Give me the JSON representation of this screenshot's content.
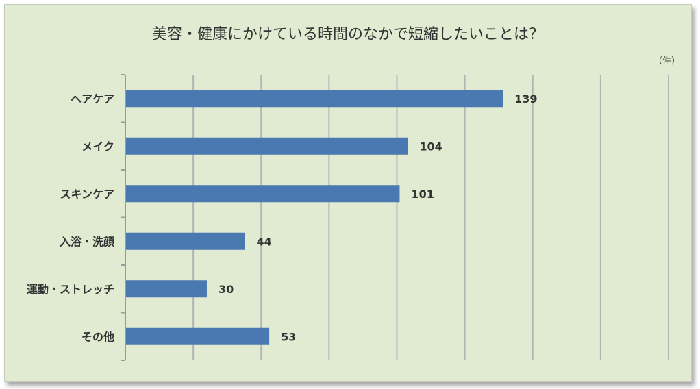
{
  "chart_data": {
    "type": "bar",
    "orientation": "horizontal",
    "title": "美容・健康にかけている時間のなかで短縮したいことは？",
    "unit_label": "（件）",
    "categories": [
      "ヘアケア",
      "メイク",
      "スキンケア",
      "入浴・洗顔",
      "運動・ストレッチ",
      "その他"
    ],
    "values": [
      139,
      104,
      101,
      44,
      30,
      53
    ],
    "value_labels": [
      "139",
      "104",
      "101",
      "44",
      "30",
      "53"
    ],
    "xlim": [
      0,
      200
    ],
    "grid": true,
    "bar_color": "#4a78b0",
    "background_color": "#e0ebd2",
    "gridline_color": "#b4b4b4"
  }
}
